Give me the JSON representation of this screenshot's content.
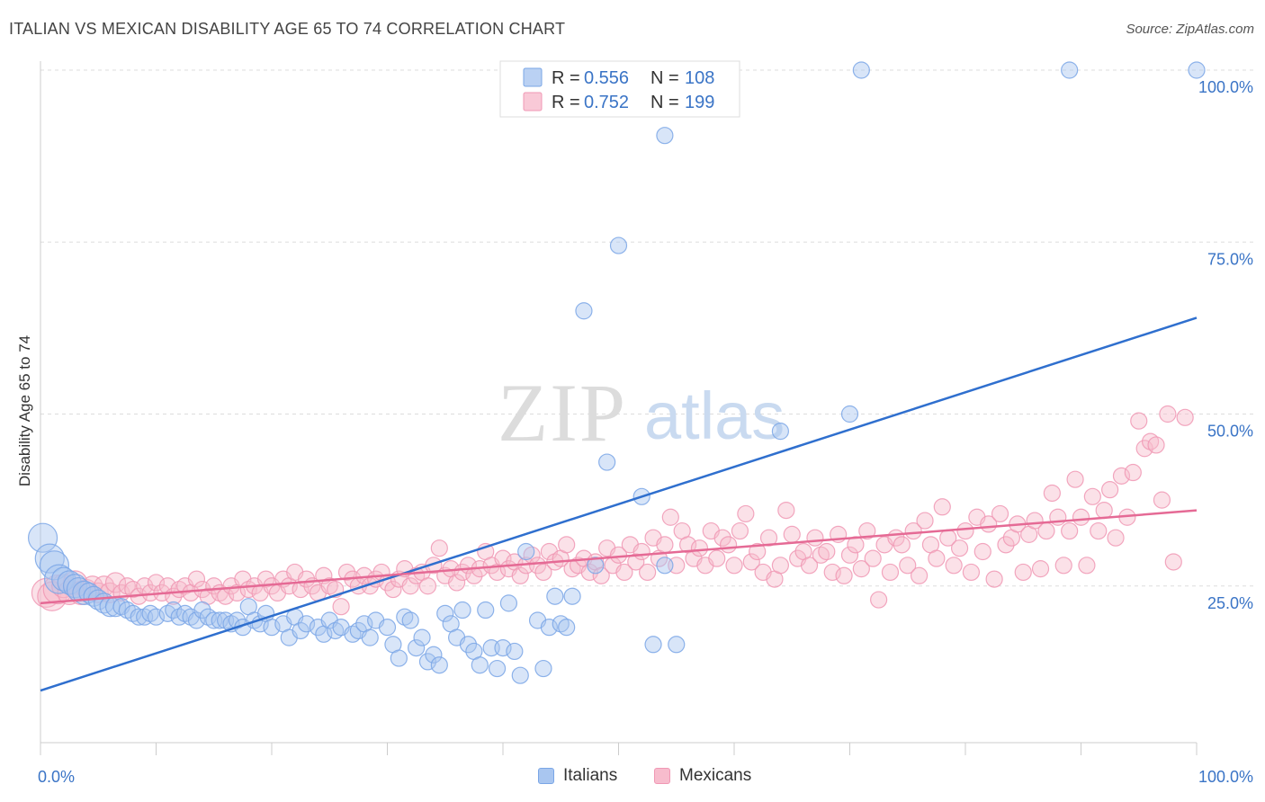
{
  "title": "ITALIAN VS MEXICAN DISABILITY AGE 65 TO 74 CORRELATION CHART",
  "source": "Source: ZipAtlas.com",
  "watermark": {
    "zip": "ZIP",
    "atlas": "atlas"
  },
  "chart_data": {
    "type": "scatter",
    "ylabel": "Disability Age 65 to 74",
    "xlabel": "",
    "xlim": [
      0,
      100
    ],
    "ylim": [
      0,
      100
    ],
    "x_tick_labels": [
      "0.0%",
      "100.0%"
    ],
    "y_tick_labels": [
      "25.0%",
      "50.0%",
      "75.0%",
      "100.0%"
    ],
    "y_ticks": [
      25,
      50,
      75,
      100
    ],
    "grid": true,
    "legend_position": "top-center",
    "legend": [
      {
        "r_label": "R =",
        "r_value": "0.556",
        "n_label": "N =",
        "n_value": "108"
      },
      {
        "r_label": "R =",
        "r_value": "0.752",
        "n_label": "N =",
        "n_value": "199"
      }
    ],
    "series": [
      {
        "name": "Italians",
        "color": "#7aa6e6",
        "fill": "#a9c6f0",
        "line_color": "#2f6fce",
        "trend": [
          [
            0,
            9.8
          ],
          [
            100,
            64
          ]
        ],
        "points": [
          [
            0.2,
            32
          ],
          [
            0.8,
            29
          ],
          [
            1.2,
            28
          ],
          [
            1.6,
            26
          ],
          [
            2,
            26
          ],
          [
            2.5,
            25.5
          ],
          [
            3,
            25
          ],
          [
            3.3,
            24.5
          ],
          [
            3.8,
            24
          ],
          [
            4.2,
            24
          ],
          [
            4.6,
            23.5
          ],
          [
            5,
            23
          ],
          [
            5.5,
            22.5
          ],
          [
            6,
            22
          ],
          [
            6.5,
            22
          ],
          [
            7,
            22
          ],
          [
            7.5,
            21.5
          ],
          [
            8,
            21
          ],
          [
            8.5,
            20.5
          ],
          [
            9,
            20.5
          ],
          [
            9.5,
            21
          ],
          [
            10,
            20.5
          ],
          [
            11,
            21
          ],
          [
            11.5,
            21.5
          ],
          [
            12,
            20.5
          ],
          [
            12.5,
            21
          ],
          [
            13,
            20.5
          ],
          [
            13.5,
            20
          ],
          [
            14,
            21.5
          ],
          [
            14.5,
            20.5
          ],
          [
            15,
            20
          ],
          [
            15.5,
            20
          ],
          [
            16,
            20
          ],
          [
            16.5,
            19.5
          ],
          [
            17,
            20
          ],
          [
            17.5,
            19
          ],
          [
            18,
            22
          ],
          [
            18.5,
            20
          ],
          [
            19,
            19.5
          ],
          [
            19.5,
            21
          ],
          [
            20,
            19
          ],
          [
            21,
            19.5
          ],
          [
            21.5,
            17.5
          ],
          [
            22,
            20.5
          ],
          [
            22.5,
            18.5
          ],
          [
            23,
            19.5
          ],
          [
            24,
            19
          ],
          [
            24.5,
            18
          ],
          [
            25,
            20
          ],
          [
            25.5,
            18.5
          ],
          [
            26,
            19
          ],
          [
            27,
            18
          ],
          [
            27.5,
            18.5
          ],
          [
            28,
            19.5
          ],
          [
            28.5,
            17.5
          ],
          [
            29,
            20
          ],
          [
            30,
            19
          ],
          [
            30.5,
            16.5
          ],
          [
            31,
            14.5
          ],
          [
            31.5,
            20.5
          ],
          [
            32,
            20
          ],
          [
            32.5,
            16
          ],
          [
            33,
            17.5
          ],
          [
            33.5,
            14
          ],
          [
            34,
            15
          ],
          [
            34.5,
            13.5
          ],
          [
            35,
            21
          ],
          [
            35.5,
            19.5
          ],
          [
            36,
            17.5
          ],
          [
            36.5,
            21.5
          ],
          [
            37,
            16.5
          ],
          [
            37.5,
            15.5
          ],
          [
            38,
            13.5
          ],
          [
            38.5,
            21.5
          ],
          [
            39,
            16
          ],
          [
            39.5,
            13
          ],
          [
            40,
            16
          ],
          [
            40.5,
            22.5
          ],
          [
            41,
            15.5
          ],
          [
            41.5,
            12
          ],
          [
            42,
            30
          ],
          [
            43,
            20
          ],
          [
            43.5,
            13
          ],
          [
            44,
            19
          ],
          [
            44.5,
            23.5
          ],
          [
            45,
            19.5
          ],
          [
            45.5,
            19
          ],
          [
            46,
            23.5
          ],
          [
            47,
            65
          ],
          [
            49,
            43
          ],
          [
            48,
            28
          ],
          [
            50,
            74.5
          ],
          [
            52,
            38
          ],
          [
            53,
            16.5
          ],
          [
            54,
            28
          ],
          [
            54,
            90.5
          ],
          [
            55,
            16.5
          ],
          [
            64,
            47.5
          ],
          [
            70,
            50
          ],
          [
            71,
            100
          ],
          [
            89,
            100
          ],
          [
            100,
            100
          ]
        ]
      },
      {
        "name": "Mexicans",
        "color": "#f098b4",
        "fill": "#f7bccd",
        "line_color": "#e56a95",
        "trend": [
          [
            0,
            22.5
          ],
          [
            100,
            36
          ]
        ],
        "points": [
          [
            0.5,
            24
          ],
          [
            1,
            23.5
          ],
          [
            1.5,
            24.5
          ],
          [
            2,
            25
          ],
          [
            2.5,
            24
          ],
          [
            3,
            25.5
          ],
          [
            3.5,
            24
          ],
          [
            4,
            24.5
          ],
          [
            4.5,
            25
          ],
          [
            5,
            24
          ],
          [
            5.5,
            25
          ],
          [
            6,
            24
          ],
          [
            6.5,
            25.5
          ],
          [
            7,
            24
          ],
          [
            7.5,
            25
          ],
          [
            8,
            24.5
          ],
          [
            8.5,
            23.5
          ],
          [
            9,
            25
          ],
          [
            9.5,
            24
          ],
          [
            10,
            25.5
          ],
          [
            10.5,
            24
          ],
          [
            11,
            25
          ],
          [
            11.5,
            23.5
          ],
          [
            12,
            24.5
          ],
          [
            12.5,
            25
          ],
          [
            13,
            24
          ],
          [
            13.5,
            26
          ],
          [
            14,
            24.5
          ],
          [
            14.5,
            23.5
          ],
          [
            15,
            25
          ],
          [
            15.5,
            24
          ],
          [
            16,
            23.5
          ],
          [
            16.5,
            25
          ],
          [
            17,
            24
          ],
          [
            17.5,
            26
          ],
          [
            18,
            24.5
          ],
          [
            18.5,
            25
          ],
          [
            19,
            24
          ],
          [
            19.5,
            26
          ],
          [
            20,
            25
          ],
          [
            20.5,
            24
          ],
          [
            21,
            26
          ],
          [
            21.5,
            25
          ],
          [
            22,
            27
          ],
          [
            22.5,
            24.5
          ],
          [
            23,
            26
          ],
          [
            23.5,
            25
          ],
          [
            24,
            24
          ],
          [
            24.5,
            26.5
          ],
          [
            25,
            25
          ],
          [
            25.5,
            24.5
          ],
          [
            26,
            22
          ],
          [
            26.5,
            27
          ],
          [
            27,
            26
          ],
          [
            27.5,
            25
          ],
          [
            28,
            26.5
          ],
          [
            28.5,
            25
          ],
          [
            29,
            26
          ],
          [
            29.5,
            27
          ],
          [
            30,
            25.5
          ],
          [
            30.5,
            24.5
          ],
          [
            31,
            26
          ],
          [
            31.5,
            27.5
          ],
          [
            32,
            25
          ],
          [
            32.5,
            26.5
          ],
          [
            33,
            27
          ],
          [
            33.5,
            25
          ],
          [
            34,
            28
          ],
          [
            34.5,
            30.5
          ],
          [
            35,
            26.5
          ],
          [
            35.5,
            27.5
          ],
          [
            36,
            25.5
          ],
          [
            36.5,
            27
          ],
          [
            37,
            28
          ],
          [
            37.5,
            26.5
          ],
          [
            38,
            27.5
          ],
          [
            38.5,
            30
          ],
          [
            39,
            28
          ],
          [
            39.5,
            27
          ],
          [
            40,
            29
          ],
          [
            40.5,
            27.5
          ],
          [
            41,
            28.5
          ],
          [
            41.5,
            26.5
          ],
          [
            42,
            28
          ],
          [
            42.5,
            29.5
          ],
          [
            43,
            28
          ],
          [
            43.5,
            27
          ],
          [
            44,
            30
          ],
          [
            44.5,
            28.5
          ],
          [
            45,
            29
          ],
          [
            45.5,
            31
          ],
          [
            46,
            27.5
          ],
          [
            46.5,
            28
          ],
          [
            47,
            29
          ],
          [
            47.5,
            27
          ],
          [
            48,
            28.5
          ],
          [
            48.5,
            26.5
          ],
          [
            49,
            30.5
          ],
          [
            49.5,
            28
          ],
          [
            50,
            29.5
          ],
          [
            50.5,
            27
          ],
          [
            51,
            31
          ],
          [
            51.5,
            28.5
          ],
          [
            52,
            30
          ],
          [
            52.5,
            27
          ],
          [
            53,
            32
          ],
          [
            53.5,
            29
          ],
          [
            54,
            31
          ],
          [
            54.5,
            35
          ],
          [
            55,
            28
          ],
          [
            55.5,
            33
          ],
          [
            56,
            31
          ],
          [
            56.5,
            29
          ],
          [
            57,
            30.5
          ],
          [
            57.5,
            28
          ],
          [
            58,
            33
          ],
          [
            58.5,
            29
          ],
          [
            59,
            32
          ],
          [
            59.5,
            31
          ],
          [
            60,
            28
          ],
          [
            60.5,
            33
          ],
          [
            61,
            35.5
          ],
          [
            61.5,
            28.5
          ],
          [
            62,
            30
          ],
          [
            62.5,
            27
          ],
          [
            63,
            32
          ],
          [
            63.5,
            26
          ],
          [
            64,
            28
          ],
          [
            64.5,
            36
          ],
          [
            65,
            32.5
          ],
          [
            65.5,
            29
          ],
          [
            66,
            30
          ],
          [
            66.5,
            28
          ],
          [
            67,
            32
          ],
          [
            67.5,
            29.5
          ],
          [
            68,
            30
          ],
          [
            68.5,
            27
          ],
          [
            69,
            32.5
          ],
          [
            69.5,
            26.5
          ],
          [
            70,
            29.5
          ],
          [
            70.5,
            31
          ],
          [
            71,
            27.5
          ],
          [
            71.5,
            33
          ],
          [
            72,
            29
          ],
          [
            72.5,
            23
          ],
          [
            73,
            31
          ],
          [
            73.5,
            27
          ],
          [
            74,
            32
          ],
          [
            74.5,
            31
          ],
          [
            75,
            28
          ],
          [
            75.5,
            33
          ],
          [
            76,
            26.5
          ],
          [
            76.5,
            34.5
          ],
          [
            77,
            31
          ],
          [
            77.5,
            29
          ],
          [
            78,
            36.5
          ],
          [
            78.5,
            32
          ],
          [
            79,
            28
          ],
          [
            79.5,
            30.5
          ],
          [
            80,
            33
          ],
          [
            80.5,
            27
          ],
          [
            81,
            35
          ],
          [
            81.5,
            30
          ],
          [
            82,
            34
          ],
          [
            82.5,
            26
          ],
          [
            83,
            35.5
          ],
          [
            83.5,
            31
          ],
          [
            84,
            32
          ],
          [
            84.5,
            34
          ],
          [
            85,
            27
          ],
          [
            85.5,
            32.5
          ],
          [
            86,
            34.5
          ],
          [
            86.5,
            27.5
          ],
          [
            87,
            33
          ],
          [
            87.5,
            38.5
          ],
          [
            88,
            35
          ],
          [
            88.5,
            28
          ],
          [
            89,
            33
          ],
          [
            89.5,
            40.5
          ],
          [
            90,
            35
          ],
          [
            90.5,
            28
          ],
          [
            91,
            38
          ],
          [
            91.5,
            33
          ],
          [
            92,
            36
          ],
          [
            92.5,
            39
          ],
          [
            93,
            32
          ],
          [
            93.5,
            41
          ],
          [
            94,
            35
          ],
          [
            94.5,
            41.5
          ],
          [
            95,
            49
          ],
          [
            95.5,
            45
          ],
          [
            96,
            46
          ],
          [
            96.5,
            45.5
          ],
          [
            97,
            37.5
          ],
          [
            97.5,
            50
          ],
          [
            98,
            28.5
          ],
          [
            99,
            49.5
          ]
        ]
      }
    ]
  }
}
